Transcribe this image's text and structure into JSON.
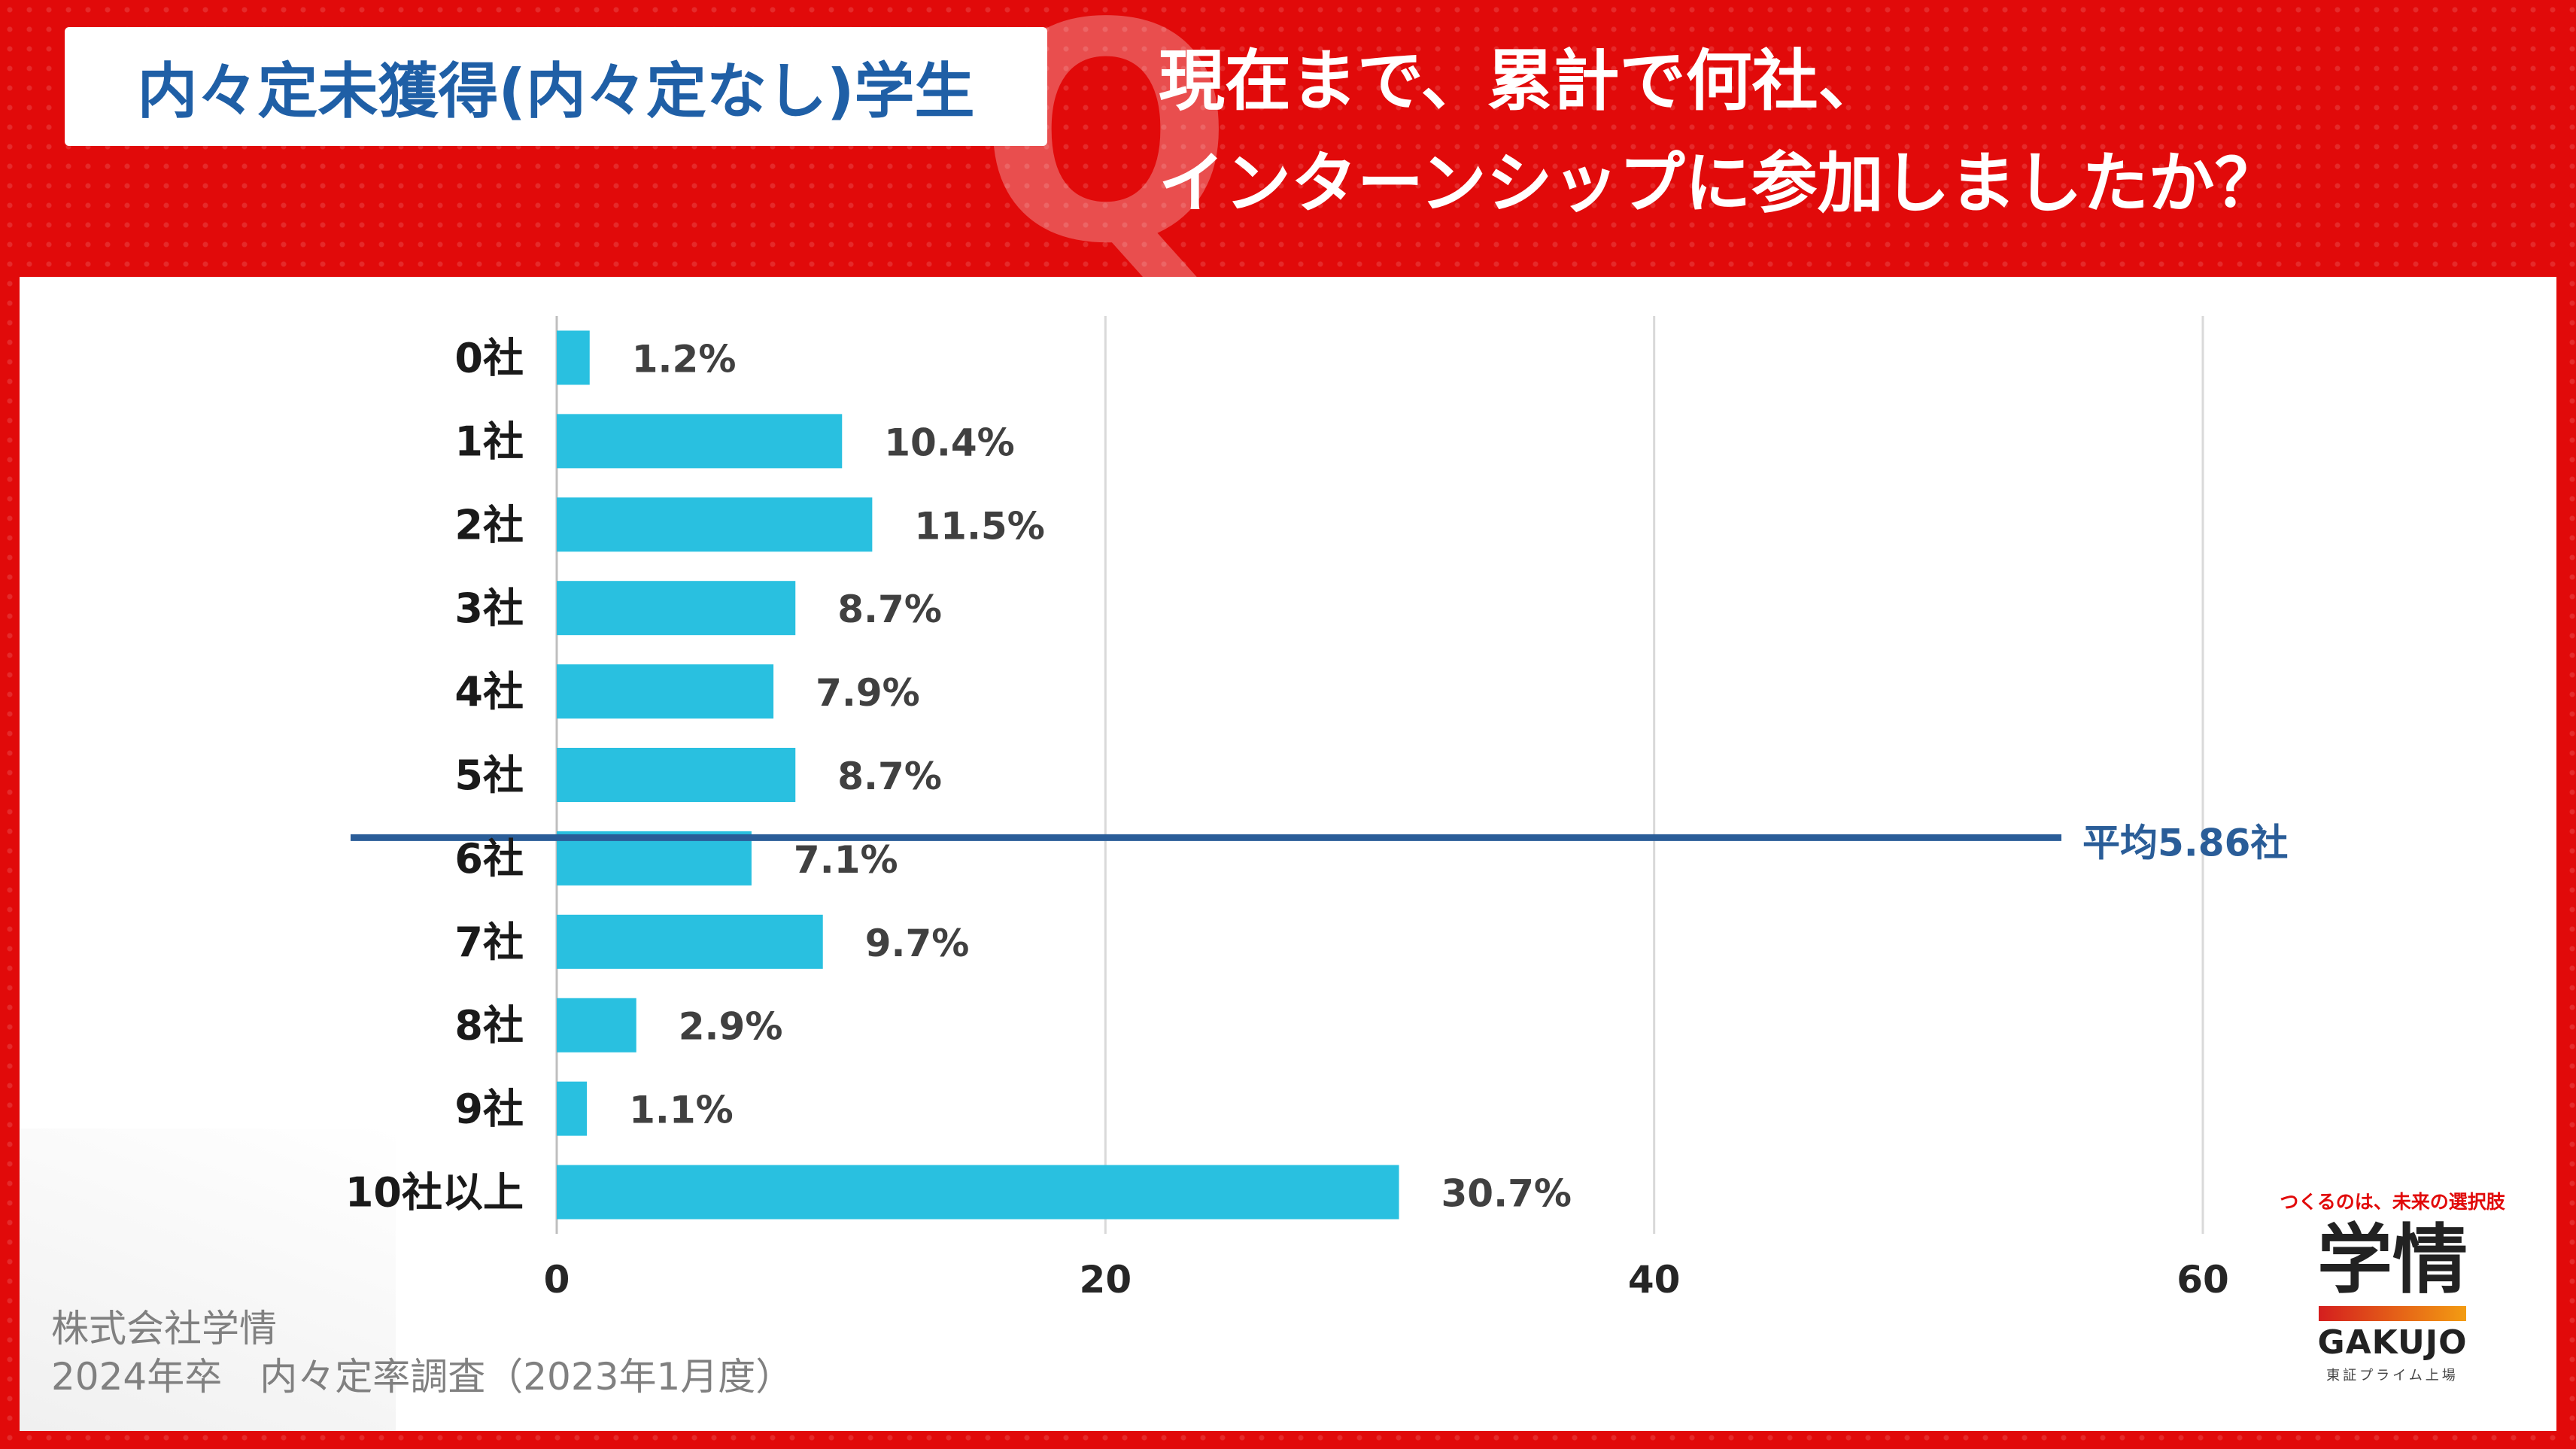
{
  "header": {
    "tag": "内々定未獲得(内々定なし)学生",
    "q_letter": "Q",
    "question_line1": "現在まで、累計で何社、",
    "question_line2": "インターンシップに参加しましたか？"
  },
  "colors": {
    "brand_red": "#e10a0a",
    "bar": "#29c0e0",
    "average_line": "#2a5d98",
    "tag_text": "#1f5fa6"
  },
  "chart_data": {
    "type": "bar",
    "orientation": "horizontal",
    "categories": [
      "0社",
      "1社",
      "2社",
      "3社",
      "4社",
      "5社",
      "6社",
      "7社",
      "8社",
      "9社",
      "10社以上"
    ],
    "values": [
      1.2,
      10.4,
      11.5,
      8.7,
      7.9,
      8.7,
      7.1,
      9.7,
      2.9,
      1.1,
      30.7
    ],
    "value_labels": [
      "1.2%",
      "10.4%",
      "11.5%",
      "8.7%",
      "7.9%",
      "8.7%",
      "7.1%",
      "9.7%",
      "2.9%",
      "1.1%",
      "30.7%"
    ],
    "xlim": [
      0,
      60
    ],
    "xticks": [
      0,
      20,
      40,
      60
    ],
    "grid": true,
    "reference_line": {
      "label": "平均5.86社",
      "value": 5.86
    }
  },
  "footer": {
    "line1": "株式会社学情",
    "line2": "2024年卒　内々定率調査（2023年1月度）"
  },
  "logo": {
    "slogan": "つくるのは、未来の選択肢",
    "kanji": "学情",
    "latin": "GAKUJO",
    "listed": "東証プライム上場"
  }
}
